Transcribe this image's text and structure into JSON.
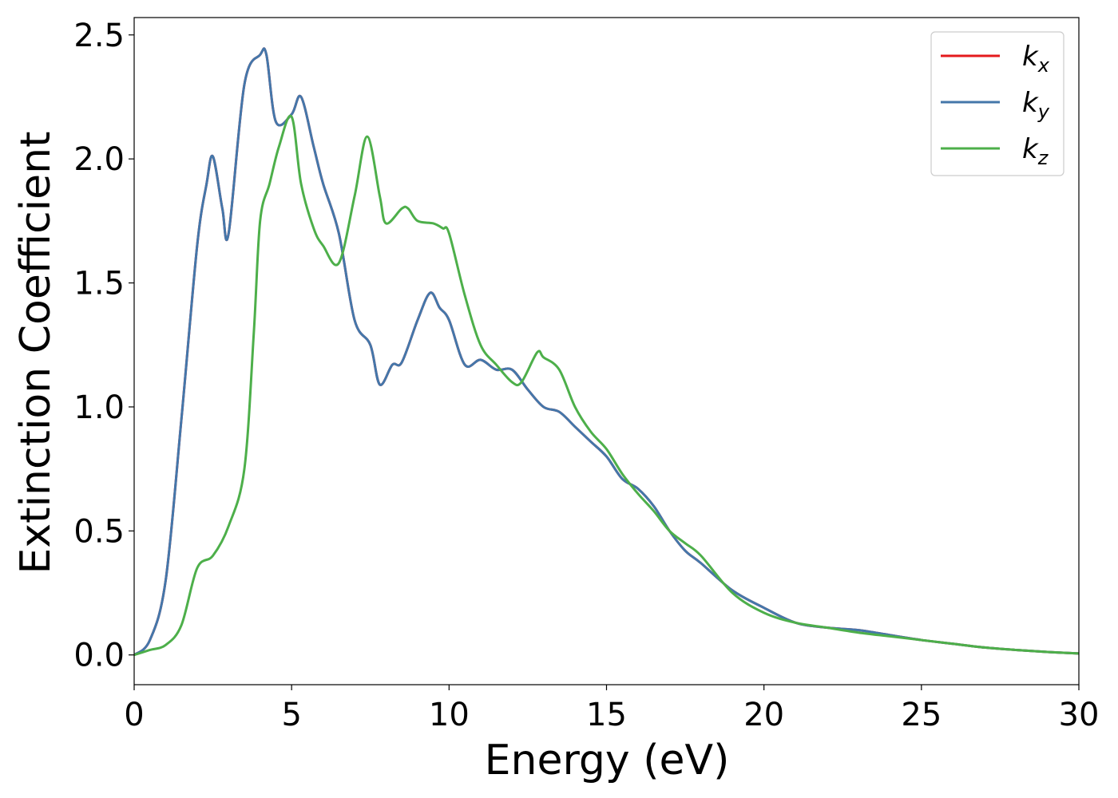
{
  "chart_data": {
    "type": "line",
    "title": "",
    "xlabel": "Energy (eV)",
    "ylabel": "Extinction Coefficient",
    "xlim": [
      0,
      30
    ],
    "ylim": [
      -0.12,
      2.57
    ],
    "xticks": [
      0,
      5,
      10,
      15,
      20,
      25,
      30
    ],
    "xtick_labels": [
      "0",
      "5",
      "10",
      "15",
      "20",
      "25",
      "30"
    ],
    "yticks": [
      0.0,
      0.5,
      1.0,
      1.5,
      2.0,
      2.5
    ],
    "ytick_labels": [
      "0.0",
      "0.5",
      "1.0",
      "1.5",
      "2.0",
      "2.5"
    ],
    "grid": false,
    "legend_position": "top-right",
    "series": [
      {
        "name": "k_x",
        "legend": {
          "base": "k",
          "sub": "x"
        },
        "color": "#e41a1c",
        "x": [
          0,
          0.5,
          1.0,
          1.5,
          2.0,
          2.3,
          2.5,
          2.8,
          3.0,
          3.5,
          4.0,
          4.2,
          4.5,
          5.0,
          5.3,
          5.7,
          6.0,
          6.5,
          7.0,
          7.5,
          7.8,
          8.2,
          8.5,
          9.0,
          9.4,
          9.7,
          10.0,
          10.5,
          11.0,
          11.5,
          12.0,
          12.5,
          13.0,
          13.5,
          14.0,
          14.5,
          15.0,
          15.5,
          16.0,
          16.5,
          17.0,
          17.5,
          18.0,
          19.0,
          20.0,
          21.0,
          22.0,
          23.0,
          24.0,
          25.0,
          26.0,
          27.0,
          28.0,
          29.0,
          30.0
        ],
        "y": [
          0.0,
          0.06,
          0.3,
          0.95,
          1.65,
          1.9,
          2.01,
          1.8,
          1.7,
          2.3,
          2.42,
          2.42,
          2.15,
          2.18,
          2.25,
          2.05,
          1.9,
          1.7,
          1.35,
          1.25,
          1.09,
          1.17,
          1.18,
          1.35,
          1.46,
          1.4,
          1.35,
          1.17,
          1.19,
          1.15,
          1.15,
          1.07,
          1.0,
          0.98,
          0.92,
          0.86,
          0.8,
          0.71,
          0.67,
          0.6,
          0.5,
          0.42,
          0.37,
          0.26,
          0.19,
          0.13,
          0.11,
          0.1,
          0.08,
          0.06,
          0.045,
          0.03,
          0.02,
          0.012,
          0.006
        ]
      },
      {
        "name": "k_y",
        "legend": {
          "base": "k",
          "sub": "y"
        },
        "color": "#4477aa",
        "x": [
          0,
          0.5,
          1.0,
          1.5,
          2.0,
          2.3,
          2.5,
          2.8,
          3.0,
          3.5,
          4.0,
          4.2,
          4.5,
          5.0,
          5.3,
          5.7,
          6.0,
          6.5,
          7.0,
          7.5,
          7.8,
          8.2,
          8.5,
          9.0,
          9.4,
          9.7,
          10.0,
          10.5,
          11.0,
          11.5,
          12.0,
          12.5,
          13.0,
          13.5,
          14.0,
          14.5,
          15.0,
          15.5,
          16.0,
          16.5,
          17.0,
          17.5,
          18.0,
          19.0,
          20.0,
          21.0,
          22.0,
          23.0,
          24.0,
          25.0,
          26.0,
          27.0,
          28.0,
          29.0,
          30.0
        ],
        "y": [
          0.0,
          0.06,
          0.3,
          0.95,
          1.65,
          1.9,
          2.01,
          1.8,
          1.7,
          2.3,
          2.42,
          2.42,
          2.15,
          2.18,
          2.25,
          2.05,
          1.9,
          1.7,
          1.35,
          1.25,
          1.09,
          1.17,
          1.18,
          1.35,
          1.46,
          1.4,
          1.35,
          1.17,
          1.19,
          1.15,
          1.15,
          1.07,
          1.0,
          0.98,
          0.92,
          0.86,
          0.8,
          0.71,
          0.67,
          0.6,
          0.5,
          0.42,
          0.37,
          0.26,
          0.19,
          0.13,
          0.11,
          0.1,
          0.08,
          0.06,
          0.045,
          0.03,
          0.02,
          0.012,
          0.006
        ]
      },
      {
        "name": "k_z",
        "legend": {
          "base": "k",
          "sub": "z"
        },
        "color": "#4daf4a",
        "x": [
          0,
          0.5,
          1.0,
          1.5,
          2.0,
          2.5,
          3.0,
          3.5,
          3.8,
          4.0,
          4.3,
          4.6,
          5.0,
          5.3,
          5.7,
          6.0,
          6.5,
          7.0,
          7.4,
          7.8,
          8.0,
          8.5,
          8.7,
          9.0,
          9.5,
          9.8,
          10.0,
          10.5,
          11.0,
          11.5,
          12.0,
          12.3,
          12.8,
          13.0,
          13.5,
          14.0,
          14.5,
          15.0,
          15.5,
          16.0,
          16.5,
          17.0,
          17.5,
          18.0,
          19.0,
          20.0,
          21.0,
          22.0,
          23.0,
          24.0,
          25.0,
          26.0,
          27.0,
          28.0,
          29.0,
          30.0
        ],
        "y": [
          0.0,
          0.02,
          0.04,
          0.12,
          0.35,
          0.4,
          0.52,
          0.75,
          1.3,
          1.75,
          1.9,
          2.05,
          2.17,
          1.9,
          1.72,
          1.65,
          1.58,
          1.85,
          2.09,
          1.85,
          1.74,
          1.8,
          1.8,
          1.75,
          1.74,
          1.72,
          1.7,
          1.45,
          1.25,
          1.17,
          1.1,
          1.1,
          1.22,
          1.2,
          1.15,
          1.0,
          0.9,
          0.83,
          0.73,
          0.65,
          0.58,
          0.5,
          0.45,
          0.4,
          0.25,
          0.17,
          0.13,
          0.11,
          0.09,
          0.075,
          0.06,
          0.045,
          0.03,
          0.02,
          0.012,
          0.006
        ]
      }
    ]
  }
}
